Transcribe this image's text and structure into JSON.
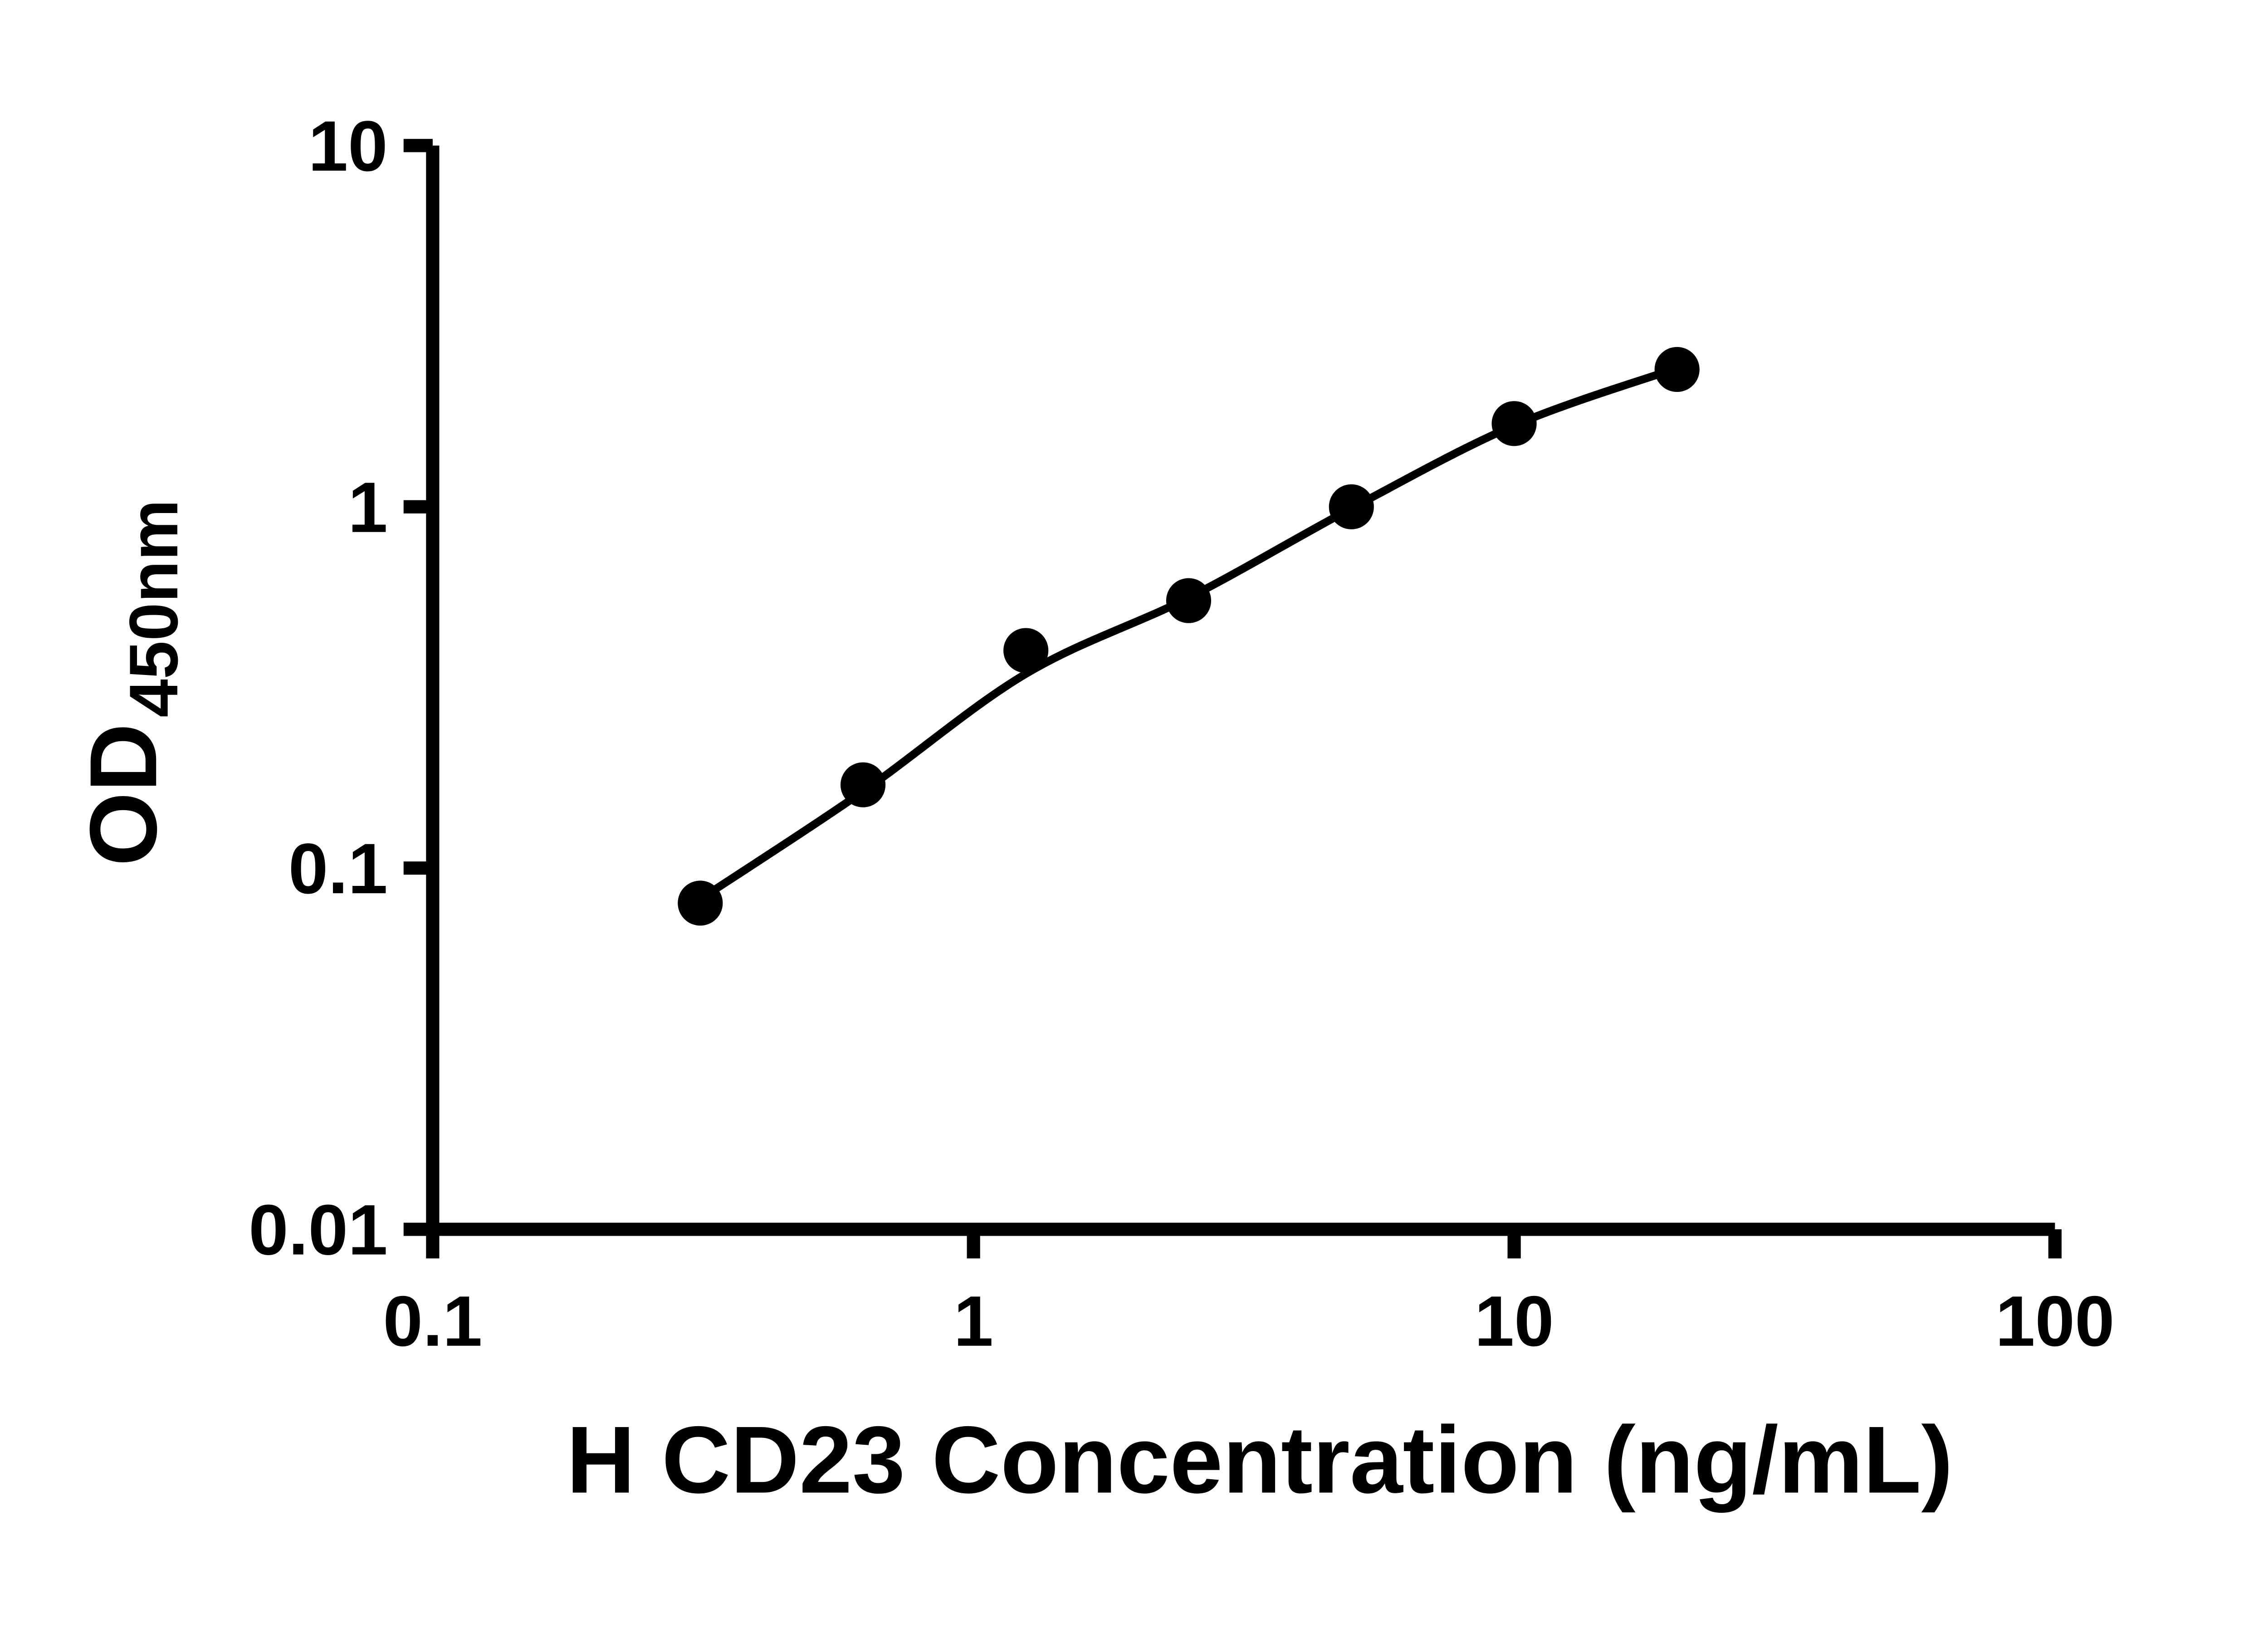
{
  "page": {
    "background": "#ffffff"
  },
  "chart_data": {
    "type": "scatter",
    "subtype": "standard-curve-with-fit-line",
    "title": "",
    "xlabel": "H CD23 Concentration (ng/mL)",
    "ylabel_main": "OD",
    "ylabel_sub": "450nm",
    "x_scale": "log",
    "y_scale": "log",
    "xlim": [
      0.1,
      100
    ],
    "ylim": [
      0.01,
      10
    ],
    "grid": false,
    "legend": null,
    "axis_color": "#000000",
    "marker_color": "#000000",
    "line_color": "#000000",
    "x_ticks": [
      {
        "value": 0.1,
        "label": "0.1"
      },
      {
        "value": 1,
        "label": "1"
      },
      {
        "value": 10,
        "label": "10"
      },
      {
        "value": 100,
        "label": "100"
      }
    ],
    "y_ticks": [
      {
        "value": 0.01,
        "label": "0.01"
      },
      {
        "value": 0.1,
        "label": "0.1"
      },
      {
        "value": 1,
        "label": "1"
      },
      {
        "value": 10,
        "label": "10"
      }
    ],
    "points": [
      {
        "x": 0.3125,
        "y": 0.08
      },
      {
        "x": 0.625,
        "y": 0.17
      },
      {
        "x": 1.25,
        "y": 0.4
      },
      {
        "x": 2.5,
        "y": 0.55
      },
      {
        "x": 5,
        "y": 1.0
      },
      {
        "x": 10,
        "y": 1.7
      },
      {
        "x": 20,
        "y": 2.4
      }
    ],
    "fit_curve": [
      {
        "x": 0.3125,
        "y": 0.082
      },
      {
        "x": 0.625,
        "y": 0.163
      },
      {
        "x": 1.25,
        "y": 0.345
      },
      {
        "x": 2.5,
        "y": 0.56
      },
      {
        "x": 5,
        "y": 0.99
      },
      {
        "x": 10,
        "y": 1.68
      },
      {
        "x": 20,
        "y": 2.42
      }
    ]
  }
}
